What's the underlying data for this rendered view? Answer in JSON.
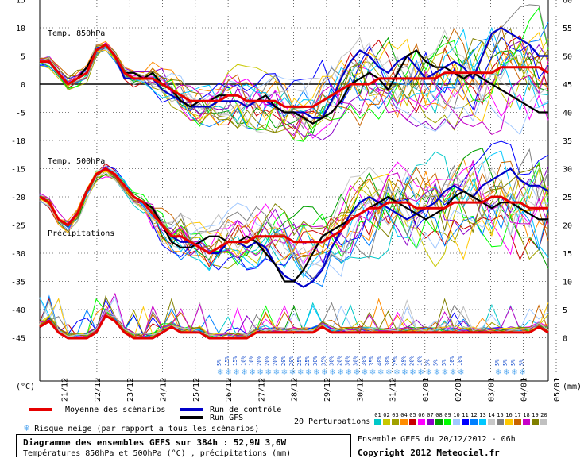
{
  "panels": {
    "t850_label": "Temp. 850hPa",
    "t500_label": "Temp. 500hPa",
    "precip_label": "Précipitations",
    "left_unit": "(°C)",
    "right_unit": "(mm)"
  },
  "legend": {
    "mean_label": "Moyenne des scénarios",
    "control_label": "Run de contrôle",
    "gfs_label": "Run GFS",
    "snow_label": "Risque neige (par rapport a tous les scénarios)",
    "perturbations_label": "20 Perturbations",
    "perturbation_numbers": [
      "01",
      "02",
      "03",
      "04",
      "05",
      "06",
      "07",
      "08",
      "09",
      "10",
      "11",
      "12",
      "13",
      "14",
      "15",
      "16",
      "17",
      "18",
      "19",
      "20"
    ],
    "perturbation_colors": [
      "#00c8c8",
      "#c8c800",
      "#a0a000",
      "#ff8c00",
      "#c80000",
      "#ff00ff",
      "#8c00c8",
      "#00a000",
      "#00ff00",
      "#a0c8ff",
      "#0000ff",
      "#0080ff",
      "#00c8ff",
      "#c8c8c8",
      "#808080",
      "#ffc800",
      "#c86400",
      "#c800c8",
      "#808000",
      "#c0c0c0"
    ]
  },
  "info": {
    "title": "Diagramme des ensembles GEFS sur 384h : 52,9N 3,6W",
    "subtitle": "Températures 850hPa et 500hPa (°C) , précipitations (mm)",
    "run": "Ensemble GEFS du 20/12/2012 - 06h",
    "copyright": "Copyright 2012 Meteociel.fr"
  },
  "colors": {
    "mean": "#e60000",
    "control": "#0000c8",
    "gfs": "#000000",
    "grid": "#000000",
    "snow": "#5aaaf0"
  },
  "chart_data": {
    "type": "line",
    "x_labels": [
      "21/12",
      "22/12",
      "23/12",
      "24/12",
      "25/12",
      "26/12",
      "27/12",
      "28/12",
      "29/12",
      "30/12",
      "31/12",
      "01/01",
      "02/01",
      "03/01",
      "04/01",
      "05/01"
    ],
    "y_left_ticks": [
      15,
      10,
      5,
      0,
      -5,
      -10,
      -15,
      -20,
      -25,
      -30,
      -35,
      -40,
      -45
    ],
    "y_right_ticks": [
      60,
      55,
      50,
      45,
      40,
      35,
      30,
      25,
      20,
      15,
      10,
      5,
      0
    ],
    "snow_risk_percent": [
      "5%",
      "15%",
      "15%",
      "10%",
      "10%",
      "20%",
      "20%",
      "20%",
      "20%",
      "20%",
      "25%",
      "25%",
      "30%",
      "35%",
      "30%",
      "20%",
      "30%",
      "30%",
      "30%",
      "35%",
      "40%",
      "30%",
      "25%",
      "25%",
      "20%",
      "10%",
      "5%",
      "5%",
      "5%",
      "10%",
      "10%",
      "5%",
      "5%",
      "5%",
      "5%"
    ],
    "series": [
      {
        "name": "Moyenne des scénarios",
        "panel": "850hPa",
        "values": [
          4,
          4,
          2,
          0,
          1,
          2,
          6,
          7,
          5,
          2,
          1,
          1,
          1,
          0,
          -1,
          -2,
          -3,
          -3,
          -3,
          -3,
          -2,
          -2,
          -3,
          -3,
          -3,
          -3,
          -4,
          -4,
          -4,
          -4,
          -3,
          -2,
          -1,
          0,
          0,
          0,
          1,
          1,
          1,
          1,
          1,
          1,
          1,
          2,
          2,
          2,
          2,
          2,
          2,
          3,
          3,
          3,
          3,
          3,
          2
        ]
      },
      {
        "name": "Run de contrôle",
        "panel": "850hPa",
        "values": [
          4,
          4,
          2,
          0,
          1,
          3,
          6,
          7,
          5,
          1,
          1,
          1,
          1,
          -1,
          -2,
          -3,
          -4,
          -4,
          -4,
          -3,
          -3,
          -3,
          -4,
          -3,
          -3,
          -4,
          -5,
          -5,
          -5,
          -6,
          -6,
          -3,
          1,
          4,
          6,
          5,
          3,
          2,
          4,
          5,
          3,
          1,
          2,
          3,
          4,
          3,
          1,
          5,
          9,
          10,
          9,
          8,
          7,
          5,
          5
        ]
      },
      {
        "name": "Run GFS",
        "panel": "850hPa",
        "values": [
          4,
          4,
          2,
          0,
          1,
          3,
          6,
          7,
          5,
          2,
          2,
          1,
          2,
          0,
          -1,
          -3,
          -4,
          -3,
          -3,
          -2,
          -2,
          -2,
          -3,
          -3,
          -2,
          -4,
          -5,
          -5,
          -6,
          -7,
          -6,
          -5,
          -3,
          0,
          1,
          2,
          1,
          -1,
          2,
          5,
          6,
          4,
          3,
          3,
          2,
          1,
          2,
          1,
          0,
          -1,
          -2,
          -3,
          -4,
          -5,
          -5
        ]
      },
      {
        "name": "Moyenne des scénarios",
        "panel": "500hPa",
        "values": [
          -20,
          -21,
          -24,
          -25,
          -23,
          -19,
          -16,
          -15,
          -16,
          -18,
          -20,
          -21,
          -23,
          -25,
          -27,
          -27,
          -28,
          -29,
          -30,
          -29,
          -28,
          -28,
          -28,
          -27,
          -27,
          -27,
          -27,
          -28,
          -28,
          -28,
          -28,
          -27,
          -26,
          -24,
          -23,
          -22,
          -22,
          -21,
          -21,
          -21,
          -22,
          -22,
          -22,
          -22,
          -21,
          -21,
          -21,
          -21,
          -20,
          -20,
          -21,
          -21,
          -22,
          -22,
          -22
        ]
      },
      {
        "name": "Run de contrôle",
        "panel": "500hPa",
        "values": [
          -20,
          -21,
          -24,
          -25,
          -23,
          -19,
          -16,
          -15,
          -16,
          -18,
          -20,
          -21,
          -23,
          -25,
          -27,
          -28,
          -28,
          -29,
          -30,
          -30,
          -28,
          -28,
          -29,
          -28,
          -29,
          -32,
          -34,
          -35,
          -36,
          -35,
          -33,
          -29,
          -26,
          -23,
          -21,
          -20,
          -21,
          -22,
          -23,
          -24,
          -23,
          -22,
          -21,
          -19,
          -18,
          -19,
          -20,
          -18,
          -17,
          -16,
          -15,
          -17,
          -18,
          -18,
          -19
        ]
      },
      {
        "name": "Run GFS",
        "panel": "500hPa",
        "values": [
          -20,
          -21,
          -24,
          -25,
          -23,
          -19,
          -16,
          -15,
          -16,
          -18,
          -20,
          -21,
          -22,
          -25,
          -28,
          -29,
          -29,
          -28,
          -27,
          -27,
          -28,
          -28,
          -27,
          -28,
          -30,
          -32,
          -35,
          -35,
          -33,
          -30,
          -27,
          -26,
          -25,
          -24,
          -23,
          -22,
          -21,
          -20,
          -21,
          -22,
          -23,
          -24,
          -23,
          -22,
          -20,
          -19,
          -20,
          -21,
          -22,
          -21,
          -21,
          -22,
          -23,
          -24,
          -24
        ]
      },
      {
        "name": "Moyenne des scénarios",
        "panel": "precip",
        "values": [
          2,
          3,
          1,
          0,
          0,
          0,
          1,
          4,
          3,
          1,
          0,
          0,
          0,
          1,
          2,
          1,
          1,
          1,
          0,
          0,
          0,
          0,
          0,
          1,
          1,
          1,
          1,
          1,
          1,
          1,
          2,
          1,
          1,
          1,
          1,
          1,
          1,
          1,
          1,
          1,
          1,
          1,
          1,
          1,
          1,
          1,
          1,
          1,
          1,
          1,
          1,
          1,
          1,
          2,
          1
        ]
      }
    ]
  }
}
